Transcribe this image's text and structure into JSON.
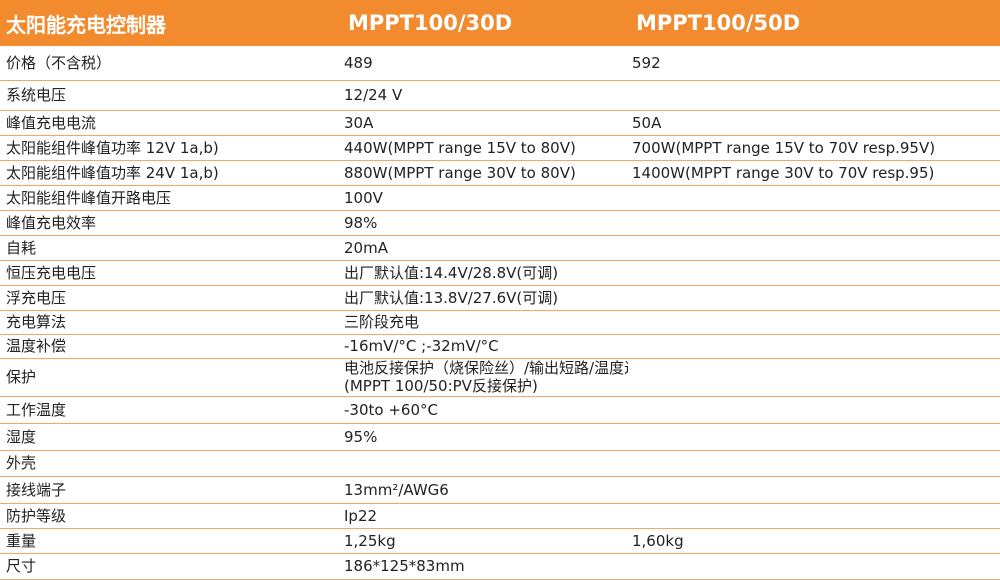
{
  "table": {
    "header": [
      "太阳能充电控制器",
      "MPPT100/30D",
      "MPPT100/50D"
    ],
    "rows": [
      [
        "价格（不含税）",
        "489",
        "592"
      ],
      [
        "系统电压",
        "12/24 V"
      ],
      [
        "峰值充电电流",
        "30A",
        "50A"
      ],
      [
        "太阳能组件峰值功率 12V 1a,b)",
        "440W(MPPT range 15V to 80V)",
        "700W(MPPT range 15V to 70V resp.95V)"
      ],
      [
        "太阳能组件峰值功率 24V 1a,b)",
        "880W(MPPT range 30V to 80V)",
        "1400W(MPPT range 30V to 70V resp.95)"
      ],
      [
        "太阳能组件峰值开路电压",
        "100V"
      ],
      [
        "峰值充电效率",
        "98%"
      ],
      [
        "自耗",
        "20mA"
      ],
      [
        "恒压充电电压",
        "出厂默认值:14.4V/28.8V(可调)"
      ],
      [
        "浮充电压",
        "出厂默认值:13.8V/27.6V(可调)"
      ],
      [
        "充电算法",
        "三阶段充电"
      ],
      [
        "温度补偿",
        "-16mV/°C ;-32mV/°C"
      ],
      [
        "保护",
        [
          "电池反接保护（烧保险丝）/输出短路/温度过高",
          "(MPPT 100/50:PV反接保护)"
        ]
      ],
      [
        "工作温度",
        "-30to +60°C"
      ],
      [
        "湿度",
        "95%"
      ],
      [
        "外壳"
      ],
      [
        "接线端子",
        "13mm²/AWG6"
      ],
      [
        "防护等级",
        "Ip22"
      ],
      [
        "重量",
        "1,25kg",
        "1,60kg"
      ],
      [
        "尺寸",
        "186*125*83mm"
      ]
    ]
  }
}
